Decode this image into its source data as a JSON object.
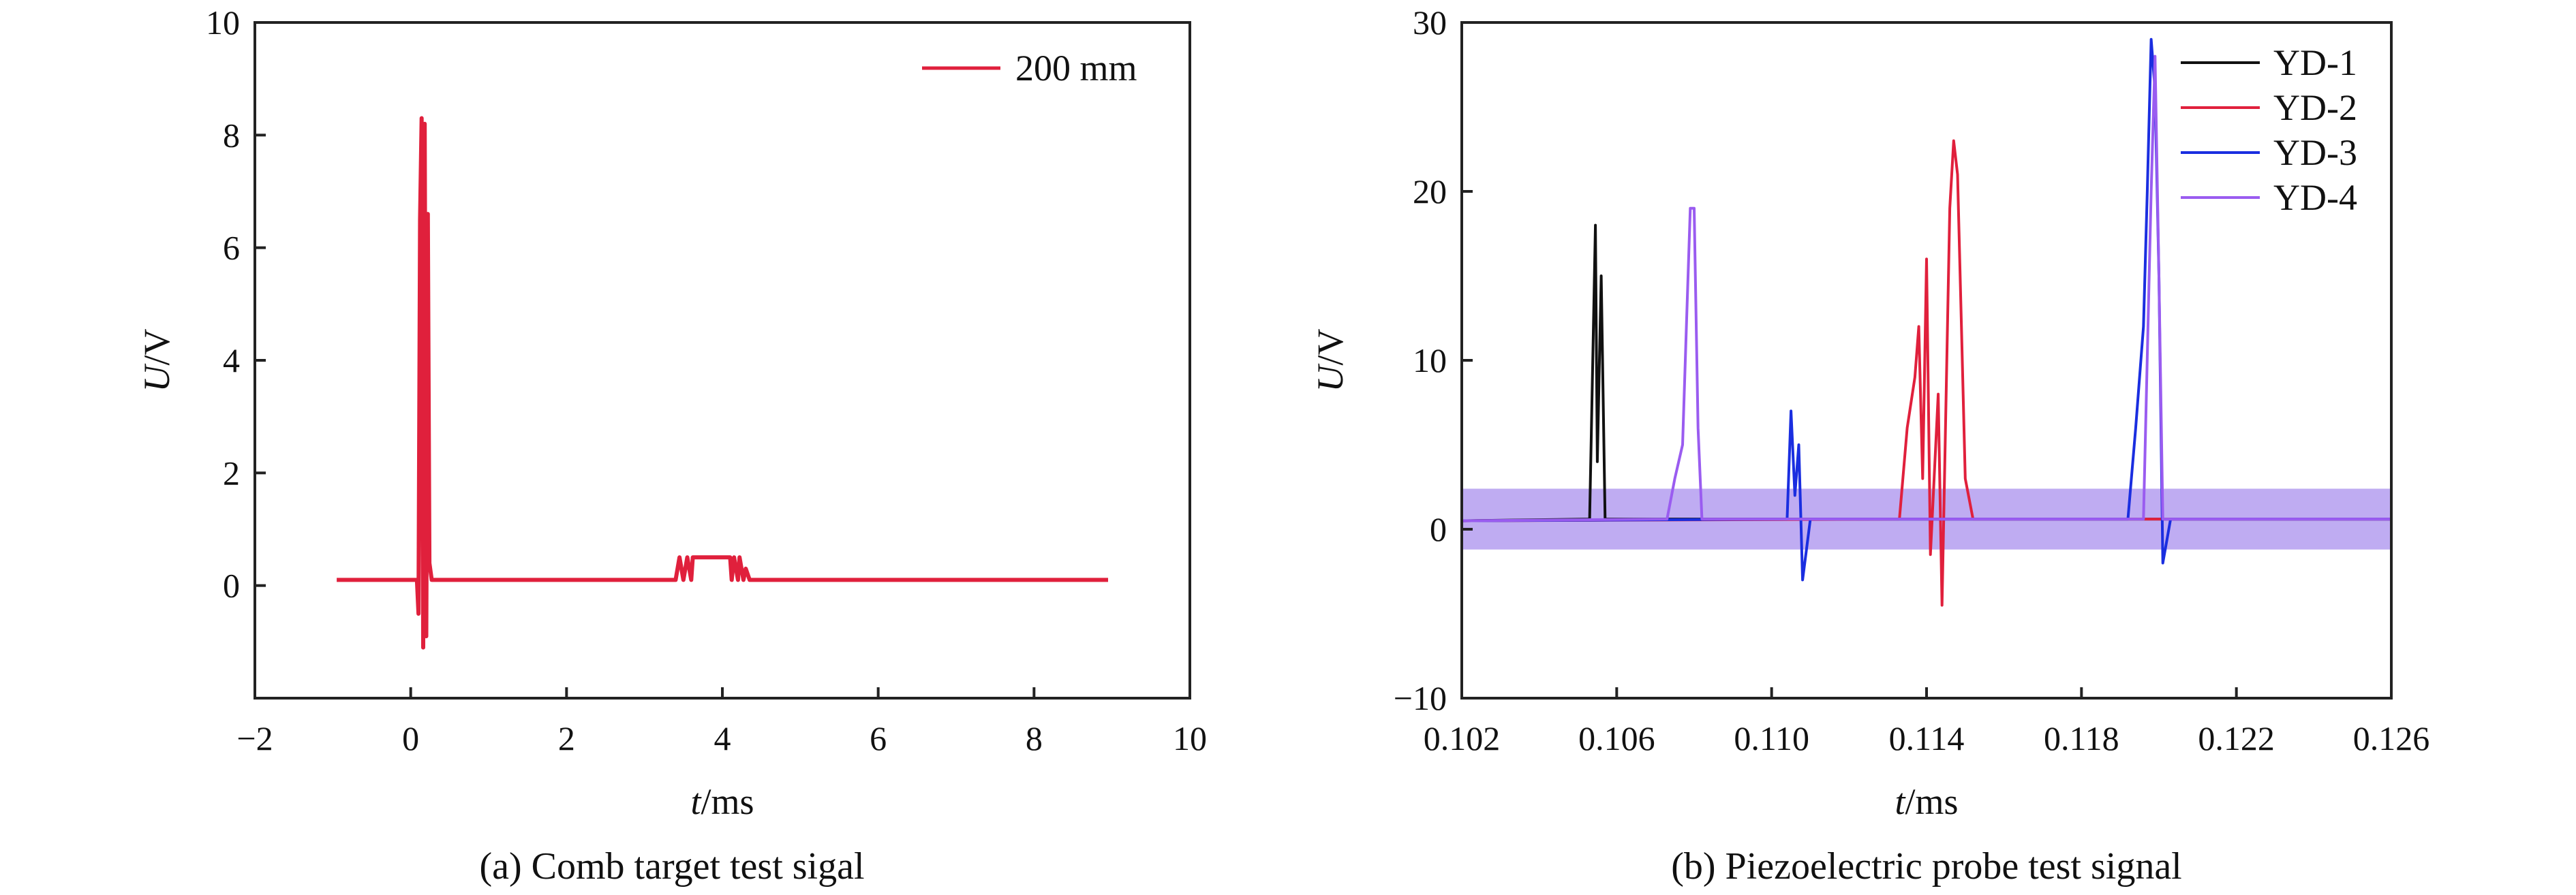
{
  "chart_data": [
    {
      "type": "line",
      "caption": "(a) Comb target test sigal",
      "xlabel_var": "t",
      "xlabel_unit": "/ms",
      "ylabel_var": "U",
      "ylabel_unit": "/V",
      "xlim": [
        -2,
        10
      ],
      "ylim": [
        -2,
        10
      ],
      "xticks": [
        -2,
        0,
        2,
        4,
        6,
        8,
        10
      ],
      "xtick_labels": [
        "−2",
        "0",
        "2",
        "4",
        "6",
        "8",
        "10"
      ],
      "yticks": [
        0,
        2,
        4,
        6,
        8,
        10
      ],
      "ytick_labels": [
        "0",
        "2",
        "4",
        "6",
        "8",
        "10"
      ],
      "legend_position": "top-right",
      "series": [
        {
          "name": "200 mm",
          "color": "#e0203c",
          "points": [
            [
              -0.95,
              0.1
            ],
            [
              0.08,
              0.1
            ],
            [
              0.1,
              -0.5
            ],
            [
              0.12,
              6.5
            ],
            [
              0.14,
              8.3
            ],
            [
              0.16,
              -1.1
            ],
            [
              0.18,
              8.2
            ],
            [
              0.2,
              -0.9
            ],
            [
              0.22,
              6.6
            ],
            [
              0.24,
              0.4
            ],
            [
              0.27,
              0.1
            ],
            [
              1.3,
              0.1
            ],
            [
              3.4,
              0.1
            ],
            [
              3.45,
              0.5
            ],
            [
              3.5,
              0.1
            ],
            [
              3.55,
              0.5
            ],
            [
              3.6,
              0.1
            ],
            [
              3.62,
              0.5
            ],
            [
              4.1,
              0.5
            ],
            [
              4.12,
              0.1
            ],
            [
              4.15,
              0.5
            ],
            [
              4.2,
              0.1
            ],
            [
              4.22,
              0.5
            ],
            [
              4.27,
              0.1
            ],
            [
              4.3,
              0.3
            ],
            [
              4.35,
              0.1
            ],
            [
              8.95,
              0.1
            ]
          ]
        }
      ]
    },
    {
      "type": "line",
      "caption": "(b) Piezoelectric probe test signal",
      "xlabel_var": "t",
      "xlabel_unit": "/ms",
      "ylabel_var": "U",
      "ylabel_unit": "/V",
      "xlim": [
        0.102,
        0.126
      ],
      "ylim": [
        -10,
        30
      ],
      "xticks": [
        0.102,
        0.106,
        0.11,
        0.114,
        0.118,
        0.122,
        0.126
      ],
      "xtick_labels": [
        "0.102",
        "0.106",
        "0.110",
        "0.114",
        "0.118",
        "0.122",
        "0.126"
      ],
      "yticks": [
        -10,
        0,
        10,
        20,
        30
      ],
      "ytick_labels": [
        "−10",
        "0",
        "10",
        "20",
        "30"
      ],
      "legend_position": "top-right",
      "noise_band": [
        -1.2,
        2.4
      ],
      "series": [
        {
          "name": "YD-1",
          "color": "#111111",
          "points": [
            [
              0.102,
              0.5
            ],
            [
              0.1053,
              0.6
            ],
            [
              0.1054,
              12
            ],
            [
              0.10545,
              18
            ],
            [
              0.1055,
              4
            ],
            [
              0.1056,
              15
            ],
            [
              0.1057,
              0.6
            ],
            [
              0.126,
              0.6
            ]
          ]
        },
        {
          "name": "YD-2",
          "color": "#e0203c",
          "points": [
            [
              0.102,
              0.5
            ],
            [
              0.1133,
              0.6
            ],
            [
              0.1135,
              6
            ],
            [
              0.1137,
              9
            ],
            [
              0.1138,
              12
            ],
            [
              0.1139,
              3
            ],
            [
              0.114,
              16
            ],
            [
              0.1141,
              -1.5
            ],
            [
              0.1143,
              8
            ],
            [
              0.1144,
              -4.5
            ],
            [
              0.1146,
              19
            ],
            [
              0.1147,
              23
            ],
            [
              0.1148,
              21
            ],
            [
              0.1149,
              12
            ],
            [
              0.115,
              3
            ],
            [
              0.1152,
              0.6
            ],
            [
              0.126,
              0.6
            ]
          ]
        },
        {
          "name": "YD-3",
          "color": "#1a2ee0",
          "points": [
            [
              0.102,
              0.5
            ],
            [
              0.1104,
              0.6
            ],
            [
              0.1105,
              7
            ],
            [
              0.1106,
              2
            ],
            [
              0.1107,
              5
            ],
            [
              0.1108,
              -3
            ],
            [
              0.111,
              0.6
            ],
            [
              0.1192,
              0.6
            ],
            [
              0.1194,
              6
            ],
            [
              0.1196,
              12
            ],
            [
              0.1197,
              20
            ],
            [
              0.1198,
              29
            ],
            [
              0.1199,
              26
            ],
            [
              0.12,
              15
            ],
            [
              0.1201,
              -2
            ],
            [
              0.1203,
              0.6
            ],
            [
              0.126,
              0.6
            ]
          ]
        },
        {
          "name": "YD-4",
          "color": "#9a5cf0",
          "points": [
            [
              0.102,
              0.5
            ],
            [
              0.1073,
              0.6
            ],
            [
              0.1075,
              3
            ],
            [
              0.1077,
              5
            ],
            [
              0.1078,
              12
            ],
            [
              0.1079,
              19
            ],
            [
              0.108,
              19
            ],
            [
              0.1081,
              6
            ],
            [
              0.1082,
              0.6
            ],
            [
              0.1196,
              0.6
            ],
            [
              0.1198,
              20
            ],
            [
              0.1199,
              28
            ],
            [
              0.12,
              15
            ],
            [
              0.1201,
              0.6
            ],
            [
              0.126,
              0.6
            ]
          ]
        }
      ]
    }
  ]
}
